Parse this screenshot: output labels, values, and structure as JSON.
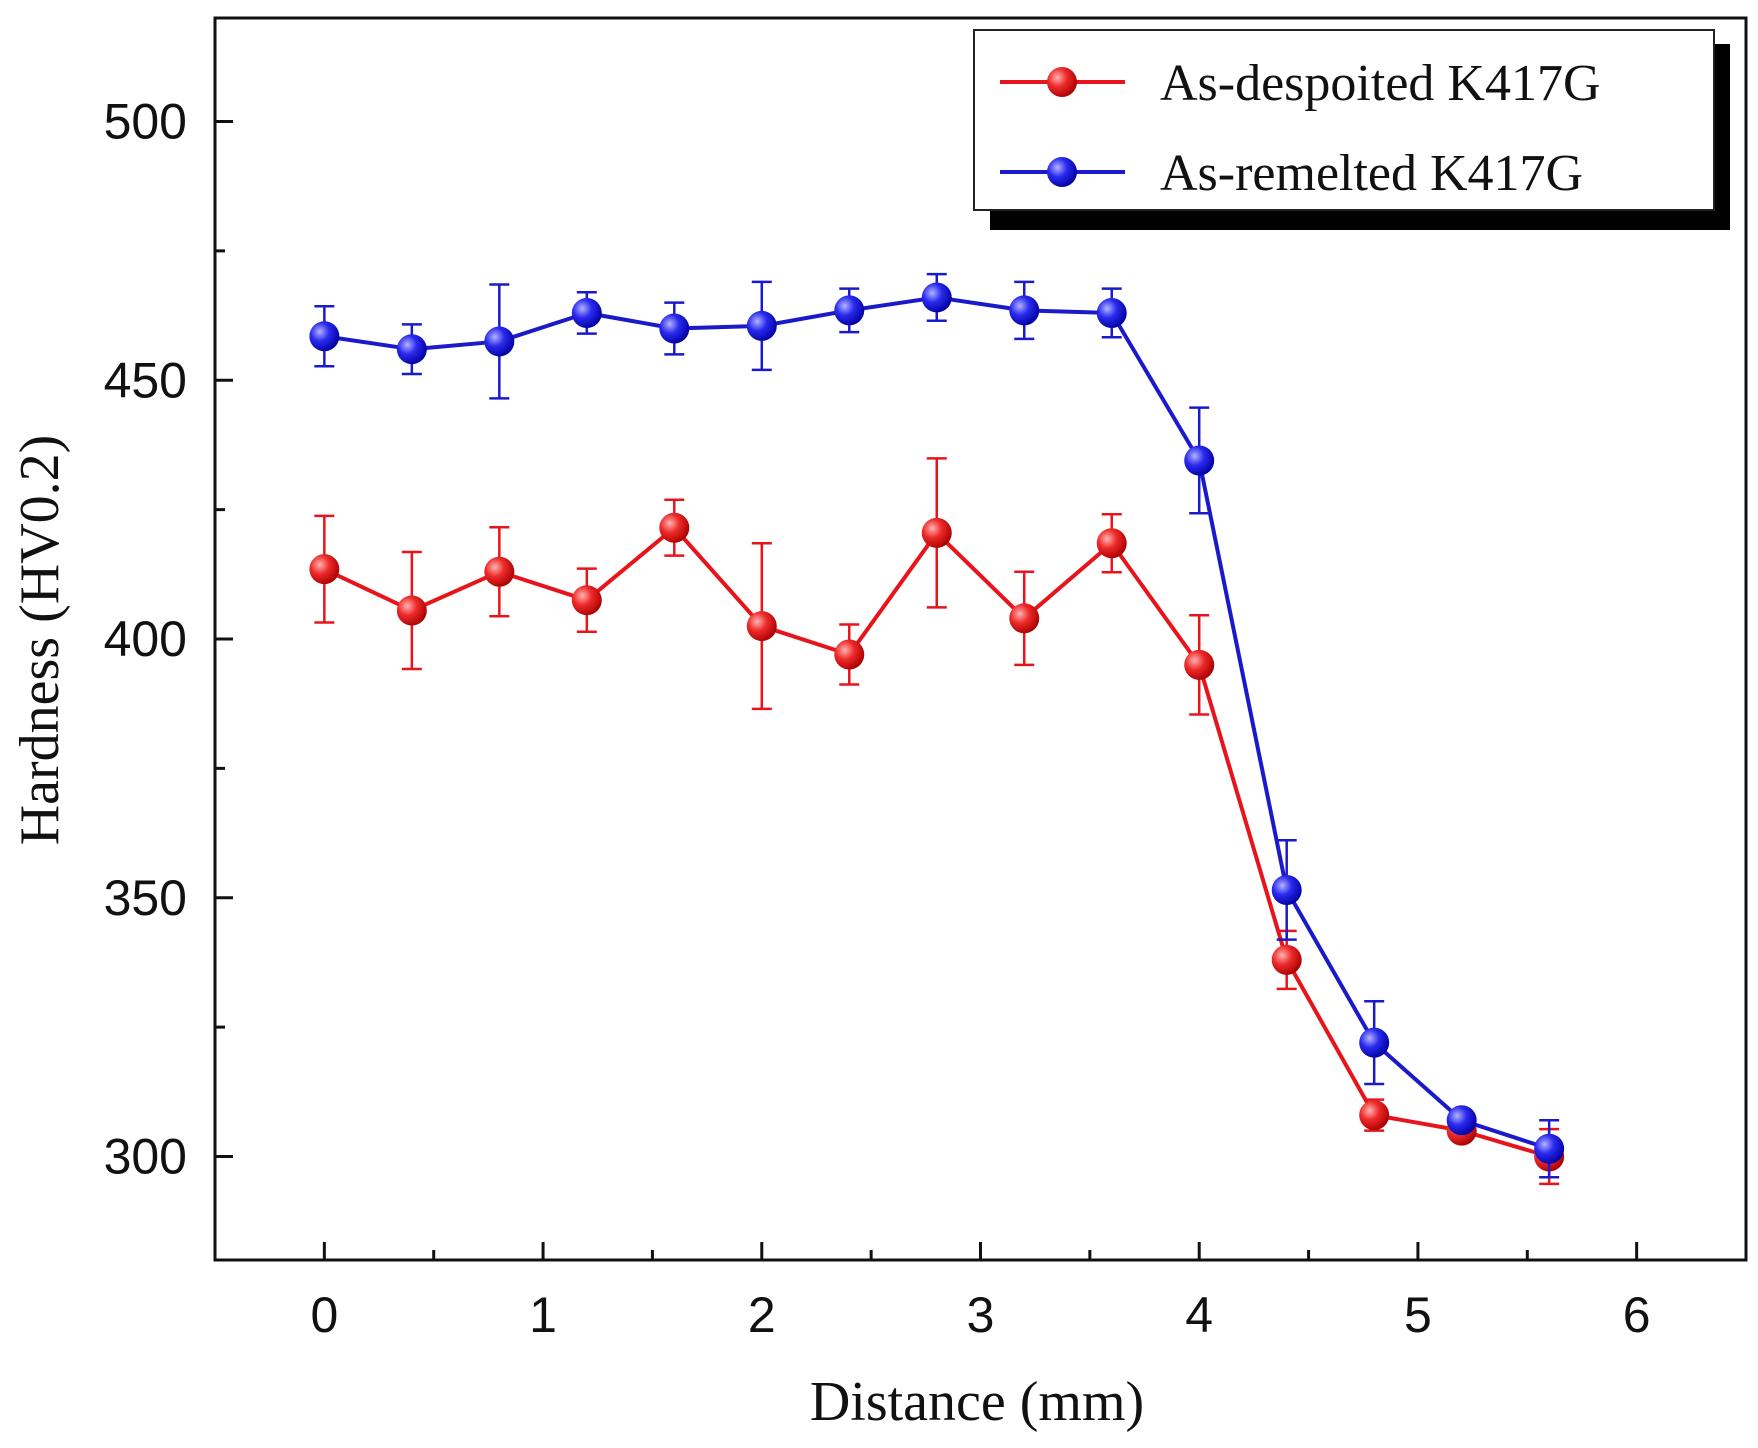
{
  "chart_data": {
    "type": "line",
    "title": "",
    "xlabel": "Distance (mm)",
    "ylabel": "Hardness (HV0.2)",
    "xlim": [
      -0.5,
      6.5
    ],
    "ylim": [
      280,
      520
    ],
    "x_ticks": [
      0,
      1,
      2,
      3,
      4,
      5,
      6
    ],
    "x_tick_labels": [
      "0",
      "1",
      "2",
      "3",
      "4",
      "5",
      "6"
    ],
    "y_ticks": [
      300,
      350,
      400,
      450,
      500
    ],
    "y_tick_labels": [
      "300",
      "350",
      "400",
      "450",
      "500"
    ],
    "grid": false,
    "legend_position": "top-right",
    "x": [
      0,
      0.4,
      0.8,
      1.2,
      1.6,
      2.0,
      2.4,
      2.8,
      3.2,
      3.6,
      4.0,
      4.4,
      4.8,
      5.2,
      5.6
    ],
    "series": [
      {
        "name": "As-despoited K417G",
        "color": "#e8141b",
        "values": [
          413.5,
          405.5,
          413,
          407.5,
          421.5,
          402.5,
          397,
          420.5,
          404,
          418.5,
          395,
          338,
          308,
          305,
          300
        ],
        "errors": [
          10.3,
          11.3,
          8.6,
          6.1,
          5.4,
          16,
          5.8,
          14.4,
          9,
          5.6,
          9.6,
          5.6,
          3,
          1.2,
          5.3
        ]
      },
      {
        "name": "As-remelted K417G",
        "color": "#1a1acb",
        "values": [
          458.5,
          456,
          457.5,
          463,
          460,
          460.5,
          463.5,
          466,
          463.5,
          463,
          434.5,
          351.5,
          322,
          307,
          301.5
        ],
        "errors": [
          5.8,
          4.8,
          11,
          4,
          5,
          8.5,
          4.2,
          4.5,
          5.5,
          4.7,
          10.2,
          9.6,
          8,
          1.2,
          5.5
        ]
      }
    ]
  }
}
